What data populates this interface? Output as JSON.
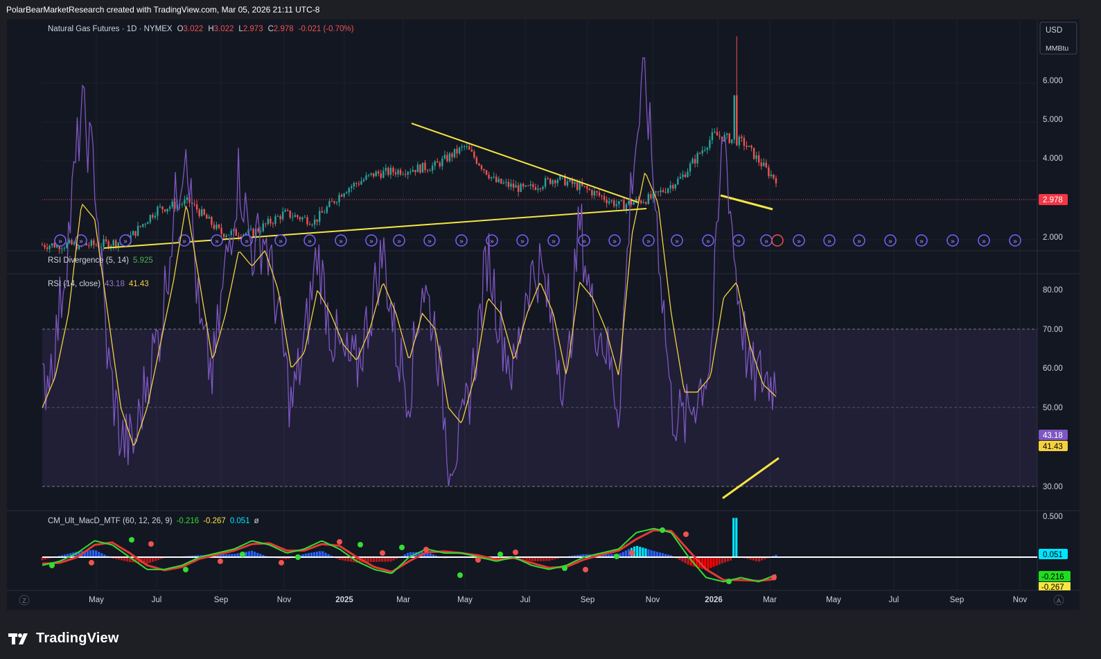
{
  "header": {
    "caption": "PolarBearMarketResearch created with TradingView.com, Mar 05, 2026 21:11 UTC-8"
  },
  "brand": {
    "name": "TradingView"
  },
  "colors": {
    "bg": "#131722",
    "panel": "#1e1f24",
    "candle_up": "#26a69a",
    "candle_down": "#ef5350",
    "rsi": "#7e57c2",
    "rsi_ma": "#f5d142",
    "trendline": "#f5e642",
    "price_line": "#f23645",
    "macd_line": "#1fdc1f",
    "signal_line": "#f5e642",
    "hist_up": "#00e5ff",
    "hist_dn": "#ff0000"
  },
  "main": {
    "legend": {
      "symbol": "Natural Gas Futures · 1D · NYMEX",
      "o_label": "O",
      "o": "3.022",
      "h_label": "H",
      "h": "3.022",
      "l_label": "L",
      "l": "2.973",
      "c_label": "C",
      "c": "2.978",
      "chg": "-0.021 (-0.70%)"
    },
    "currency": "USD",
    "unit": "MMBtu",
    "last_price_tag": "2.978",
    "y_ticks": [
      "6.000",
      "5.000",
      "4.000",
      "2.000"
    ]
  },
  "rsi_div": {
    "label": "RSI Divergence (5, 14)",
    "value": "5.925"
  },
  "rsi": {
    "label": "RSI (14, close)",
    "v1": "43.18",
    "v2": "41.43",
    "tag1": "43.18",
    "tag2": "41.43",
    "y_ticks": [
      "80.00",
      "70.00",
      "60.00",
      "50.00",
      "30.00"
    ]
  },
  "macd": {
    "label": "CM_Ult_MacD_MTF (60, 12, 26, 9)",
    "v1": "-0.216",
    "v2": "-0.267",
    "v3": "0.051",
    "v4": "ø",
    "tag_hist": "0.051",
    "tag_macd": "-0.216",
    "tag_signal": "-0.267",
    "y_top": "0.500"
  },
  "x_axis": [
    "May",
    "Jul",
    "Sep",
    "Nov",
    "2025",
    "Mar",
    "May",
    "Jul",
    "Sep",
    "Nov",
    "2026",
    "Mar",
    "May",
    "Jul",
    "Sep",
    "Nov"
  ],
  "corner_left": "Z",
  "corner_right": "A",
  "chart_data": {
    "type": "candlestick",
    "title": "Natural Gas Futures · 1D · NYMEX",
    "ylabel": "USD/MMBtu",
    "ylim": [
      1.8,
      7.1
    ],
    "price_series": {
      "x": [
        "2024-03",
        "2024-04",
        "2024-05",
        "2024-06",
        "2024-07",
        "2024-08",
        "2024-09",
        "2024-10",
        "2024-11",
        "2024-12",
        "2025-01",
        "2025-02",
        "2025-03",
        "2025-04",
        "2025-05",
        "2025-06",
        "2025-07",
        "2025-08",
        "2025-09",
        "2025-10",
        "2025-11",
        "2025-12",
        "2026-01",
        "2026-02",
        "2026-03"
      ],
      "close": [
        1.8,
        1.9,
        2.7,
        2.9,
        2.1,
        2.1,
        2.6,
        2.4,
        3.2,
        3.6,
        3.7,
        3.8,
        4.3,
        3.4,
        3.2,
        3.5,
        3.2,
        2.8,
        3.0,
        3.5,
        4.6,
        4.4,
        3.6,
        3.1,
        2.978
      ]
    },
    "rsi_series": {
      "ylim": [
        28,
        82
      ],
      "rsi_last": 43.18,
      "ma_last": 41.43,
      "bands": [
        30,
        50,
        70
      ]
    },
    "macd_series": {
      "macd_last": -0.216,
      "signal_last": -0.267,
      "hist_last": 0.051,
      "ylim": [
        -0.4,
        0.5
      ]
    },
    "annotations": [
      "descending trendline Mar 2025 to Oct 2025",
      "ascending support line 2024 to Oct 2025",
      "falling lows line Jan 2026 to Mar 2026",
      "rising RSI lows line Jan 2026 to Mar 2026"
    ]
  }
}
